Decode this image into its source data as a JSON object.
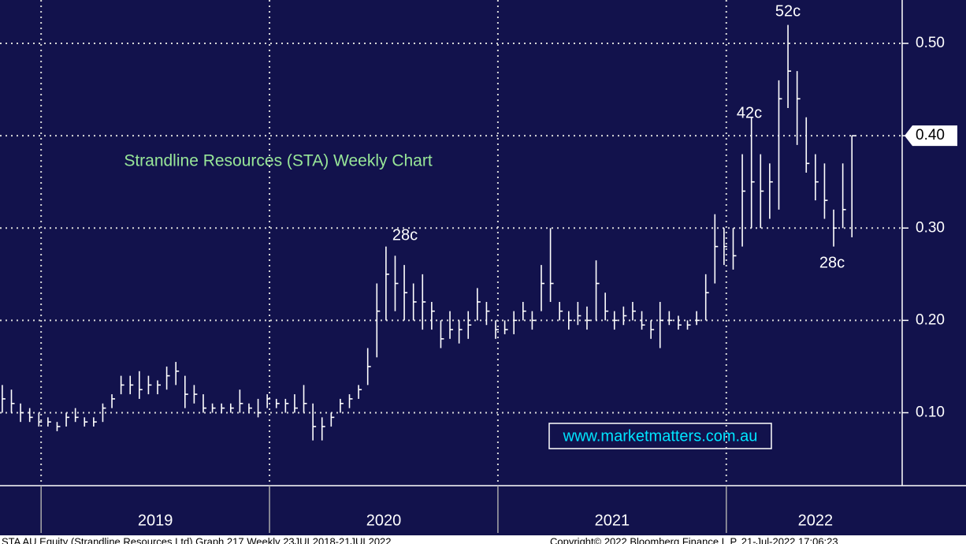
{
  "chart_data": {
    "type": "ohlc",
    "title": "Strandline Resources (STA) Weekly Chart",
    "watermark": "www.marketmatters.com.au",
    "footer_left": "STA AU Equity (Strandline Resources Ltd) Graph 217 Weekly 23JUL2018-21JUL2022",
    "footer_right": "Copyright© 2022 Bloomberg Finance L.P.   21-Jul-2022 17:06:23",
    "annotations": [
      "52c",
      "42c",
      "28c",
      "28c"
    ],
    "color": "#ffffff",
    "grid": true,
    "xlim": [
      2018.82,
      2022.77
    ],
    "ylim": [
      0.021,
      0.547
    ],
    "yticks": [
      {
        "value": 0.1,
        "label": "0.10"
      },
      {
        "value": 0.2,
        "label": "0.20"
      },
      {
        "value": 0.3,
        "label": "0.30"
      },
      {
        "value": 0.4,
        "label": "0.40"
      },
      {
        "value": 0.5,
        "label": "0.50"
      }
    ],
    "xticks": [
      {
        "value": 2019.5,
        "label": "2019"
      },
      {
        "value": 2020.5,
        "label": "2020"
      },
      {
        "value": 2021.5,
        "label": "2021"
      },
      {
        "value": 2022.39,
        "label": "2022"
      }
    ],
    "year_starts": [
      2019,
      2020,
      2021,
      2022
    ],
    "last_price": {
      "value": 0.4,
      "label": "0.40"
    },
    "x": [
      2018.83,
      2018.87,
      2018.91,
      2018.95,
      2018.99,
      2019.03,
      2019.07,
      2019.11,
      2019.15,
      2019.19,
      2019.23,
      2019.27,
      2019.31,
      2019.35,
      2019.39,
      2019.43,
      2019.47,
      2019.51,
      2019.55,
      2019.59,
      2019.63,
      2019.67,
      2019.71,
      2019.75,
      2019.79,
      2019.83,
      2019.87,
      2019.91,
      2019.95,
      2019.99,
      2020.03,
      2020.07,
      2020.11,
      2020.15,
      2020.19,
      2020.23,
      2020.27,
      2020.31,
      2020.35,
      2020.39,
      2020.43,
      2020.47,
      2020.51,
      2020.55,
      2020.59,
      2020.63,
      2020.67,
      2020.71,
      2020.75,
      2020.79,
      2020.83,
      2020.87,
      2020.91,
      2020.95,
      2020.99,
      2021.03,
      2021.07,
      2021.11,
      2021.15,
      2021.19,
      2021.23,
      2021.27,
      2021.31,
      2021.35,
      2021.39,
      2021.43,
      2021.47,
      2021.51,
      2021.55,
      2021.59,
      2021.63,
      2021.67,
      2021.71,
      2021.75,
      2021.79,
      2021.83,
      2021.87,
      2021.91,
      2021.95,
      2021.99,
      2022.03,
      2022.07,
      2022.11,
      2022.15,
      2022.19,
      2022.23,
      2022.27,
      2022.31,
      2022.35,
      2022.39,
      2022.43,
      2022.47,
      2022.51,
      2022.55
    ],
    "high": [
      0.13,
      0.125,
      0.11,
      0.105,
      0.1,
      0.095,
      0.09,
      0.1,
      0.105,
      0.095,
      0.095,
      0.11,
      0.12,
      0.14,
      0.14,
      0.145,
      0.14,
      0.135,
      0.15,
      0.155,
      0.14,
      0.13,
      0.12,
      0.11,
      0.11,
      0.11,
      0.125,
      0.11,
      0.115,
      0.12,
      0.115,
      0.115,
      0.12,
      0.13,
      0.11,
      0.095,
      0.1,
      0.115,
      0.12,
      0.13,
      0.17,
      0.24,
      0.28,
      0.27,
      0.26,
      0.24,
      0.25,
      0.22,
      0.2,
      0.21,
      0.2,
      0.21,
      0.235,
      0.22,
      0.2,
      0.2,
      0.21,
      0.22,
      0.21,
      0.26,
      0.3,
      0.22,
      0.21,
      0.22,
      0.215,
      0.265,
      0.23,
      0.21,
      0.215,
      0.22,
      0.21,
      0.2,
      0.22,
      0.21,
      0.205,
      0.2,
      0.21,
      0.25,
      0.315,
      0.3,
      0.3,
      0.38,
      0.42,
      0.38,
      0.37,
      0.46,
      0.52,
      0.47,
      0.42,
      0.38,
      0.37,
      0.32,
      0.37,
      0.4
    ],
    "low": [
      0.1,
      0.1,
      0.09,
      0.09,
      0.085,
      0.085,
      0.08,
      0.085,
      0.09,
      0.085,
      0.085,
      0.09,
      0.105,
      0.12,
      0.12,
      0.115,
      0.12,
      0.12,
      0.125,
      0.13,
      0.105,
      0.11,
      0.1,
      0.1,
      0.1,
      0.1,
      0.1,
      0.1,
      0.095,
      0.105,
      0.105,
      0.1,
      0.1,
      0.1,
      0.07,
      0.07,
      0.085,
      0.1,
      0.105,
      0.115,
      0.13,
      0.16,
      0.2,
      0.21,
      0.2,
      0.2,
      0.19,
      0.19,
      0.17,
      0.18,
      0.175,
      0.18,
      0.2,
      0.195,
      0.18,
      0.185,
      0.185,
      0.2,
      0.19,
      0.21,
      0.22,
      0.2,
      0.19,
      0.195,
      0.19,
      0.2,
      0.2,
      0.19,
      0.195,
      0.2,
      0.19,
      0.18,
      0.17,
      0.195,
      0.19,
      0.19,
      0.195,
      0.2,
      0.24,
      0.26,
      0.255,
      0.28,
      0.3,
      0.3,
      0.31,
      0.32,
      0.43,
      0.39,
      0.36,
      0.33,
      0.31,
      0.28,
      0.3,
      0.29
    ],
    "close": [
      0.115,
      0.11,
      0.1,
      0.095,
      0.09,
      0.09,
      0.085,
      0.095,
      0.095,
      0.09,
      0.09,
      0.105,
      0.115,
      0.13,
      0.13,
      0.125,
      0.13,
      0.13,
      0.14,
      0.145,
      0.12,
      0.12,
      0.105,
      0.105,
      0.105,
      0.105,
      0.11,
      0.105,
      0.1,
      0.115,
      0.11,
      0.11,
      0.105,
      0.11,
      0.085,
      0.085,
      0.095,
      0.11,
      0.115,
      0.125,
      0.15,
      0.21,
      0.25,
      0.24,
      0.23,
      0.22,
      0.22,
      0.21,
      0.18,
      0.19,
      0.19,
      0.195,
      0.22,
      0.21,
      0.19,
      0.19,
      0.2,
      0.21,
      0.2,
      0.24,
      0.24,
      0.21,
      0.2,
      0.205,
      0.2,
      0.24,
      0.21,
      0.2,
      0.205,
      0.21,
      0.195,
      0.19,
      0.2,
      0.2,
      0.195,
      0.195,
      0.2,
      0.23,
      0.28,
      0.28,
      0.27,
      0.34,
      0.35,
      0.34,
      0.35,
      0.44,
      0.47,
      0.44,
      0.37,
      0.35,
      0.33,
      0.3,
      0.32,
      0.4
    ]
  }
}
